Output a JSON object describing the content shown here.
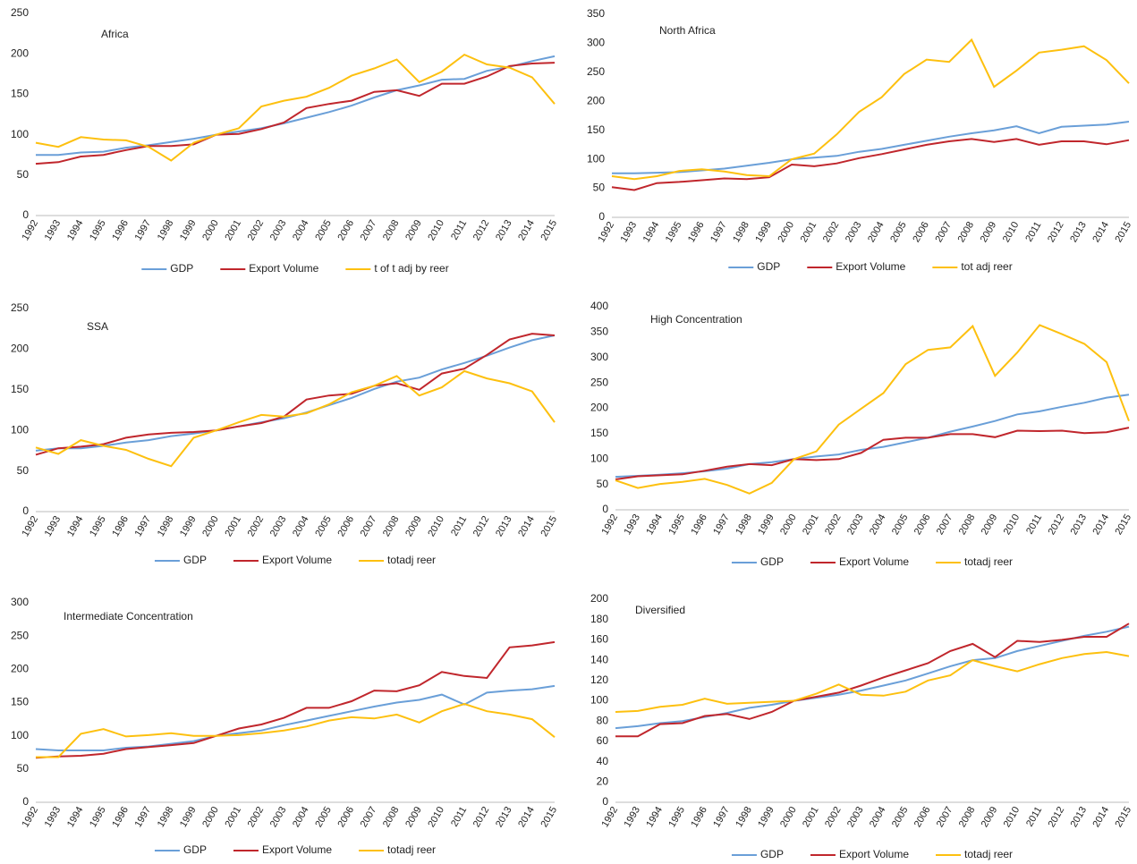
{
  "chart_data": [
    {
      "type": "line",
      "title": "Africa",
      "categories": [
        "1992",
        "1993",
        "1994",
        "1995",
        "1996",
        "1997",
        "1998",
        "1999",
        "2000",
        "2001",
        "2002",
        "2003",
        "2004",
        "2005",
        "2006",
        "2007",
        "2008",
        "2009",
        "2010",
        "2011",
        "2012",
        "2013",
        "2014",
        "2015"
      ],
      "series": [
        {
          "name": "GDP",
          "color": "#6a9fd8",
          "values": [
            75,
            75,
            78,
            79,
            84,
            87,
            91,
            95,
            100,
            104,
            108,
            114,
            121,
            128,
            136,
            146,
            155,
            161,
            168,
            169,
            179,
            184,
            191,
            197
          ]
        },
        {
          "name": "Export Volume",
          "color": "#c0262c",
          "values": [
            64,
            66,
            73,
            75,
            81,
            86,
            86,
            88,
            100,
            101,
            107,
            115,
            133,
            138,
            142,
            153,
            155,
            148,
            163,
            163,
            172,
            185,
            188,
            189
          ]
        },
        {
          "name": "t of t adj by reer",
          "color": "#fdc00f",
          "values": [
            90,
            85,
            97,
            94,
            93,
            85,
            68,
            90,
            100,
            108,
            135,
            142,
            147,
            158,
            173,
            182,
            193,
            165,
            178,
            199,
            187,
            183,
            171,
            138
          ]
        }
      ],
      "ylim": [
        0,
        250
      ],
      "yticks": [
        0,
        50,
        100,
        150,
        200,
        250
      ]
    },
    {
      "type": "line",
      "title": "North Africa",
      "categories": [
        "1992",
        "1993",
        "1994",
        "1995",
        "1996",
        "1997",
        "1998",
        "1999",
        "2000",
        "2001",
        "2002",
        "2003",
        "2004",
        "2005",
        "2006",
        "2007",
        "2008",
        "2009",
        "2010",
        "2011",
        "2012",
        "2013",
        "2014",
        "2015"
      ],
      "series": [
        {
          "name": "GDP",
          "color": "#6a9fd8",
          "values": [
            76,
            76,
            77,
            78,
            81,
            84,
            89,
            94,
            100,
            103,
            106,
            113,
            118,
            125,
            132,
            139,
            145,
            150,
            157,
            145,
            156,
            158,
            160,
            165
          ]
        },
        {
          "name": "Export Volume",
          "color": "#c0262c",
          "values": [
            52,
            47,
            59,
            61,
            64,
            67,
            66,
            69,
            91,
            88,
            93,
            102,
            109,
            117,
            125,
            131,
            135,
            130,
            135,
            125,
            131,
            131,
            126,
            133
          ]
        },
        {
          "name": "tot adj reer",
          "color": "#fdc00f",
          "values": [
            71,
            66,
            71,
            80,
            83,
            79,
            73,
            71,
            100,
            110,
            143,
            182,
            207,
            247,
            272,
            268,
            306,
            225,
            253,
            284,
            289,
            295,
            271,
            231
          ]
        }
      ],
      "ylim": [
        0,
        350
      ],
      "yticks": [
        0,
        50,
        100,
        150,
        200,
        250,
        300,
        350
      ]
    },
    {
      "type": "line",
      "title": "SSA",
      "categories": [
        "1992",
        "1993",
        "1994",
        "1995",
        "1996",
        "1997",
        "1998",
        "1999",
        "2000",
        "2001",
        "2002",
        "2003",
        "2004",
        "2005",
        "2006",
        "2007",
        "2008",
        "2009",
        "2010",
        "2011",
        "2012",
        "2013",
        "2014",
        "2015"
      ],
      "series": [
        {
          "name": "GDP",
          "color": "#6a9fd8",
          "values": [
            75,
            78,
            78,
            81,
            85,
            88,
            93,
            96,
            100,
            105,
            110,
            115,
            122,
            131,
            140,
            151,
            160,
            165,
            175,
            183,
            192,
            202,
            211,
            217
          ]
        },
        {
          "name": "Export Volume",
          "color": "#c0262c",
          "values": [
            70,
            78,
            80,
            83,
            91,
            95,
            97,
            98,
            100,
            105,
            109,
            117,
            138,
            143,
            145,
            155,
            158,
            150,
            170,
            176,
            193,
            212,
            219,
            217
          ]
        },
        {
          "name": "totadj reer",
          "color": "#fdc00f",
          "values": [
            79,
            71,
            88,
            81,
            76,
            65,
            56,
            91,
            100,
            110,
            119,
            117,
            121,
            132,
            147,
            155,
            167,
            143,
            153,
            173,
            164,
            158,
            148,
            110
          ]
        }
      ],
      "ylim": [
        0,
        250
      ],
      "yticks": [
        0,
        50,
        100,
        150,
        200,
        250
      ]
    },
    {
      "type": "line",
      "title": "High Concentration",
      "categories": [
        "1992",
        "1993",
        "1994",
        "1995",
        "1996",
        "1997",
        "1998",
        "1999",
        "2000",
        "2001",
        "2002",
        "2003",
        "2004",
        "2005",
        "2006",
        "2007",
        "2008",
        "2009",
        "2010",
        "2011",
        "2012",
        "2013",
        "2014",
        "2015"
      ],
      "series": [
        {
          "name": "GDP",
          "color": "#6a9fd8",
          "values": [
            65,
            67,
            69,
            72,
            76,
            81,
            90,
            94,
            100,
            105,
            109,
            118,
            124,
            133,
            142,
            154,
            164,
            175,
            188,
            194,
            203,
            211,
            221,
            227
          ]
        },
        {
          "name": "Export Volume",
          "color": "#c0262c",
          "values": [
            60,
            66,
            68,
            70,
            77,
            85,
            90,
            88,
            100,
            98,
            100,
            112,
            138,
            142,
            142,
            149,
            149,
            143,
            156,
            155,
            156,
            151,
            153,
            162
          ]
        },
        {
          "name": "totadj reer",
          "color": "#fdc00f",
          "values": [
            58,
            43,
            51,
            55,
            61,
            49,
            32,
            53,
            100,
            115,
            168,
            199,
            230,
            287,
            315,
            320,
            362,
            264,
            310,
            364,
            346,
            327,
            291,
            175
          ]
        }
      ],
      "ylim": [
        0,
        400
      ],
      "yticks": [
        0,
        50,
        100,
        150,
        200,
        250,
        300,
        350,
        400
      ]
    },
    {
      "type": "line",
      "title": "Intermediate Concentration",
      "categories": [
        "1992",
        "1993",
        "1994",
        "1995",
        "1996",
        "1997",
        "1998",
        "1999",
        "2000",
        "2001",
        "2002",
        "2003",
        "2004",
        "2005",
        "2006",
        "2007",
        "2008",
        "2009",
        "2010",
        "2011",
        "2012",
        "2013",
        "2014",
        "2015"
      ],
      "series": [
        {
          "name": "GDP",
          "color": "#6a9fd8",
          "values": [
            80,
            78,
            78,
            78,
            82,
            84,
            88,
            92,
            100,
            104,
            108,
            116,
            123,
            130,
            137,
            144,
            150,
            154,
            162,
            147,
            165,
            168,
            170,
            175
          ]
        },
        {
          "name": "Export Volume",
          "color": "#c0262c",
          "values": [
            67,
            69,
            70,
            73,
            80,
            83,
            86,
            89,
            100,
            111,
            117,
            127,
            142,
            142,
            152,
            168,
            167,
            176,
            196,
            190,
            187,
            233,
            236,
            241
          ]
        },
        {
          "name": "totadj reer",
          "color": "#fdc00f",
          "values": [
            68,
            68,
            103,
            110,
            99,
            101,
            104,
            100,
            100,
            101,
            104,
            108,
            114,
            123,
            128,
            126,
            132,
            120,
            137,
            148,
            137,
            132,
            125,
            98
          ]
        }
      ],
      "ylim": [
        0,
        300
      ],
      "yticks": [
        0,
        50,
        100,
        150,
        200,
        250,
        300
      ]
    },
    {
      "type": "line",
      "title": "Diversified",
      "categories": [
        "1992",
        "1993",
        "1994",
        "1995",
        "1996",
        "1997",
        "1998",
        "1999",
        "2000",
        "2001",
        "2002",
        "2003",
        "2004",
        "2005",
        "2006",
        "2007",
        "2008",
        "2009",
        "2010",
        "2011",
        "2012",
        "2013",
        "2014",
        "2015"
      ],
      "series": [
        {
          "name": "GDP",
          "color": "#6a9fd8",
          "values": [
            73,
            75,
            78,
            80,
            84,
            88,
            93,
            96,
            100,
            103,
            106,
            110,
            115,
            120,
            127,
            134,
            140,
            142,
            149,
            154,
            159,
            164,
            168,
            173
          ]
        },
        {
          "name": "Export Volume",
          "color": "#c0262c",
          "values": [
            65,
            65,
            77,
            78,
            85,
            87,
            82,
            89,
            100,
            104,
            108,
            115,
            123,
            130,
            137,
            149,
            156,
            143,
            159,
            158,
            160,
            163,
            163,
            176
          ]
        },
        {
          "name": "totadj reer",
          "color": "#fdc00f",
          "values": [
            89,
            90,
            94,
            96,
            102,
            97,
            98,
            99,
            100,
            107,
            116,
            106,
            105,
            109,
            120,
            125,
            140,
            134,
            129,
            136,
            142,
            146,
            148,
            144
          ]
        }
      ],
      "ylim": [
        0,
        200
      ],
      "yticks": [
        0,
        20,
        40,
        60,
        80,
        100,
        120,
        140,
        160,
        180,
        200
      ]
    }
  ]
}
